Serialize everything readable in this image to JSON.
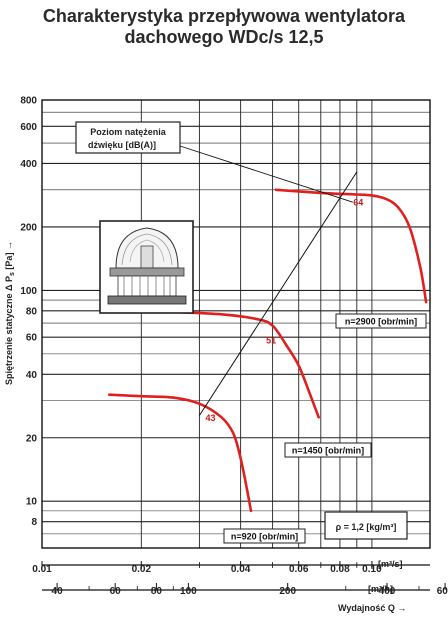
{
  "title_line1": "Charakterystyka przepływowa wentylatora",
  "title_line2": "dachowego WDc/s 12,5",
  "chart_data": {
    "type": "line",
    "title": "Charakterystyka przepływowa wentylatora dachowego WDc/s 12,5",
    "y_axis": {
      "label_main": "Spiętrzenie statyczne Δ P",
      "label_sub": "s",
      "unit": "[Pa]",
      "arrow": "→",
      "scale": "log",
      "range": [
        6,
        800
      ],
      "ticks": [
        8,
        10,
        20,
        40,
        60,
        80,
        100,
        200,
        400,
        600,
        800
      ]
    },
    "x_axis_top": {
      "unit": "[m³/s]",
      "scale": "log",
      "range": [
        0.01,
        0.15
      ],
      "ticks": [
        "0.01",
        "0.02",
        "0.04",
        "0.06",
        "0.08",
        "0.10"
      ]
    },
    "x_axis_bottom": {
      "label": "Wydajność Q",
      "unit": "[m³/h]",
      "arrow": "→",
      "scale": "log",
      "ticks": [
        "40",
        "60",
        "80",
        "100",
        "200",
        "400",
        "600"
      ]
    },
    "series": [
      {
        "name": "n=2900 [obr/min]",
        "color": "#e0201f",
        "points": [
          [
            0.0512,
            300
          ],
          [
            0.07,
            290
          ],
          [
            0.09,
            285
          ],
          [
            0.1,
            282
          ],
          [
            0.11,
            272
          ],
          [
            0.12,
            248
          ],
          [
            0.13,
            200
          ],
          [
            0.14,
            130
          ],
          [
            0.146,
            88
          ]
        ]
      },
      {
        "name": "n=1450 [obr/min]",
        "color": "#e0201f",
        "points": [
          [
            0.025,
            79
          ],
          [
            0.035,
            77
          ],
          [
            0.045,
            73
          ],
          [
            0.05,
            68
          ],
          [
            0.055,
            55
          ],
          [
            0.06,
            44
          ],
          [
            0.065,
            32
          ],
          [
            0.069,
            25
          ]
        ]
      },
      {
        "name": "n=920 [obr/min]",
        "color": "#e0201f",
        "points": [
          [
            0.016,
            32
          ],
          [
            0.02,
            31.5
          ],
          [
            0.025,
            31
          ],
          [
            0.03,
            29
          ],
          [
            0.035,
            25
          ],
          [
            0.038,
            21
          ],
          [
            0.04,
            16
          ],
          [
            0.042,
            11
          ],
          [
            0.043,
            9
          ]
        ]
      }
    ],
    "noise_label": "Poziom natężenia dźwięku [dB(A)]",
    "noise_line": {
      "from": [
        0.03,
        25.5
      ],
      "to": [
        0.09,
        365
      ]
    },
    "noise_points": [
      {
        "value": "64",
        "at": [
          0.0878,
          253
        ]
      },
      {
        "value": "51",
        "at": [
          0.0478,
          56
        ]
      },
      {
        "value": "43",
        "at": [
          0.0313,
          24
        ]
      }
    ],
    "density_note": "ρ = 1,2 [kg/m³]",
    "grid": true,
    "legend": "inline"
  }
}
